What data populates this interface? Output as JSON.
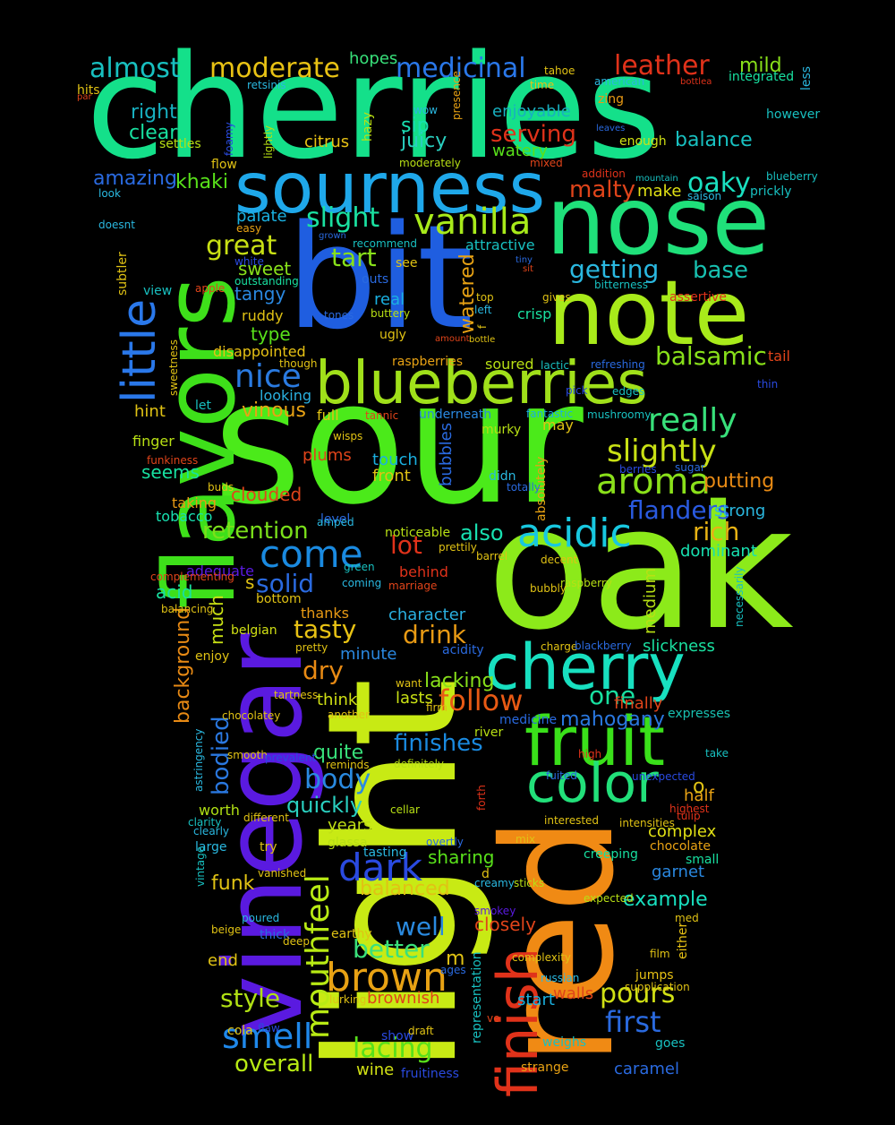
{
  "words": [
    {
      "text": "cherries",
      "color": "#14e08a"
    },
    {
      "text": "sour",
      "color": "#4bea1a"
    },
    {
      "text": "light",
      "color": "#c8ea14"
    },
    {
      "text": "oak",
      "color": "#8cea1a"
    },
    {
      "text": "bit",
      "color": "#1f5ee0"
    },
    {
      "text": "nose",
      "color": "#1fe07a"
    },
    {
      "text": "note",
      "color": "#a8ea1a"
    },
    {
      "text": "red",
      "color": "#f08a14"
    },
    {
      "text": "vinegar",
      "color": "#5a1ae0"
    },
    {
      "text": "flavors",
      "color": "#3ee01a"
    },
    {
      "text": "sourness",
      "color": "#1fa8ea"
    },
    {
      "text": "blueberries",
      "color": "#a0e01a"
    },
    {
      "text": "cherry",
      "color": "#18e0c0"
    },
    {
      "text": "fruit",
      "color": "#3ae01a"
    },
    {
      "text": "color",
      "color": "#22e07a"
    },
    {
      "text": "finish",
      "color": "#e0321a"
    },
    {
      "text": "little",
      "color": "#2a78ea"
    },
    {
      "text": "brown",
      "color": "#e8a214"
    },
    {
      "text": "smell",
      "color": "#1f88ea"
    },
    {
      "text": "mouthfeel",
      "color": "#b8ea14"
    },
    {
      "text": "acidic",
      "color": "#18c8e0"
    },
    {
      "text": "aroma",
      "color": "#8ae01a"
    },
    {
      "text": "vanilla",
      "color": "#a8ea1a"
    },
    {
      "text": "dark",
      "color": "#2a4ae0"
    },
    {
      "text": "come",
      "color": "#1a8ae0"
    },
    {
      "text": "really",
      "color": "#38e07a"
    },
    {
      "text": "slightly",
      "color": "#c8e014"
    },
    {
      "text": "nice",
      "color": "#2a7ae0"
    },
    {
      "text": "first",
      "color": "#2a6ae0"
    },
    {
      "text": "pours",
      "color": "#d0e014"
    },
    {
      "text": "lacing",
      "color": "#58e01a"
    },
    {
      "text": "better",
      "color": "#3ae07a"
    },
    {
      "text": "follow",
      "color": "#e85a14"
    },
    {
      "text": "body",
      "color": "#2a8ae0"
    },
    {
      "text": "style",
      "color": "#b0e014"
    },
    {
      "text": "overall",
      "color": "#b8ea14"
    },
    {
      "text": "medicinal",
      "color": "#2a78ea"
    },
    {
      "text": "moderate",
      "color": "#e8c214"
    },
    {
      "text": "almost",
      "color": "#18c0c0"
    },
    {
      "text": "leather",
      "color": "#e0321a"
    },
    {
      "text": "slight",
      "color": "#1ae0a0"
    },
    {
      "text": "great",
      "color": "#c8e014"
    },
    {
      "text": "oaky",
      "color": "#1ae0c0"
    },
    {
      "text": "getting",
      "color": "#2ab8e0"
    },
    {
      "text": "balsamic",
      "color": "#88e01a"
    },
    {
      "text": "flanders",
      "color": "#2a5ae0"
    },
    {
      "text": "retention",
      "color": "#7ae01a"
    },
    {
      "text": "solid",
      "color": "#2a6ae0"
    },
    {
      "text": "tasty",
      "color": "#e8c214"
    },
    {
      "text": "drink",
      "color": "#e89a14"
    },
    {
      "text": "dry",
      "color": "#e88a14"
    },
    {
      "text": "finishes",
      "color": "#1a8ae0"
    },
    {
      "text": "quickly",
      "color": "#2ad0c0"
    },
    {
      "text": "balanced",
      "color": "#e0c214"
    },
    {
      "text": "well",
      "color": "#2a8ae0"
    },
    {
      "text": "mahogany",
      "color": "#2a78e0"
    },
    {
      "text": "one",
      "color": "#18e0a0"
    },
    {
      "text": "rich",
      "color": "#e8b214"
    },
    {
      "text": "lot",
      "color": "#e0321a"
    },
    {
      "text": "also",
      "color": "#18e0b0"
    },
    {
      "text": "tart",
      "color": "#88e01a"
    },
    {
      "text": "malty",
      "color": "#e0441a"
    },
    {
      "text": "base",
      "color": "#18c0b0"
    },
    {
      "text": "serving",
      "color": "#e0321a"
    },
    {
      "text": "juicy",
      "color": "#2ad0c0"
    },
    {
      "text": "sip",
      "color": "#18e0b0"
    },
    {
      "text": "balance",
      "color": "#18c0c0"
    },
    {
      "text": "right",
      "color": "#18b0c0"
    },
    {
      "text": "clear",
      "color": "#18e0a0"
    },
    {
      "text": "amazing",
      "color": "#2a6ae0"
    },
    {
      "text": "khaki",
      "color": "#58e01a"
    },
    {
      "text": "sweet",
      "color": "#88e01a"
    },
    {
      "text": "tangy",
      "color": "#2a88e0"
    },
    {
      "text": "type",
      "color": "#58e01a"
    },
    {
      "text": "vinous",
      "color": "#e8a214"
    },
    {
      "text": "hint",
      "color": "#e0c214"
    },
    {
      "text": "seems",
      "color": "#18e0a0"
    },
    {
      "text": "clouded",
      "color": "#e0441a"
    },
    {
      "text": "much",
      "color": "#c8e014"
    },
    {
      "text": "acid",
      "color": "#18e0a0"
    },
    {
      "text": "background",
      "color": "#e88a14"
    },
    {
      "text": "bodied",
      "color": "#2a78e0"
    },
    {
      "text": "worth",
      "color": "#b0e014"
    },
    {
      "text": "funk",
      "color": "#e0c214"
    },
    {
      "text": "end",
      "color": "#e0c214"
    },
    {
      "text": "mild",
      "color": "#88e01a"
    },
    {
      "text": "hopes",
      "color": "#38e07a"
    },
    {
      "text": "citrus",
      "color": "#e8c214"
    },
    {
      "text": "watery",
      "color": "#58e01a"
    },
    {
      "text": "enjoyable",
      "color": "#18b0c0"
    },
    {
      "text": "make",
      "color": "#e0e014"
    },
    {
      "text": "palate",
      "color": "#1ab0e0"
    },
    {
      "text": "watered",
      "color": "#e8a214"
    },
    {
      "text": "putting",
      "color": "#e88a14"
    },
    {
      "text": "strong",
      "color": "#2ab8e0"
    },
    {
      "text": "dominant",
      "color": "#18e0b0"
    },
    {
      "text": "medium",
      "color": "#b8e014"
    },
    {
      "text": "character",
      "color": "#2ab0e0"
    },
    {
      "text": "minute",
      "color": "#2a88e0"
    },
    {
      "text": "think",
      "color": "#d0e014"
    },
    {
      "text": "lasts",
      "color": "#c8e014"
    },
    {
      "text": "lacking",
      "color": "#88e01a"
    },
    {
      "text": "quite",
      "color": "#38e07a"
    },
    {
      "text": "years",
      "color": "#c0e014"
    },
    {
      "text": "sharing",
      "color": "#58e01a"
    },
    {
      "text": "closely",
      "color": "#e0441a"
    },
    {
      "text": "example",
      "color": "#18e0c0"
    },
    {
      "text": "complex",
      "color": "#e0e014"
    },
    {
      "text": "half",
      "color": "#e8a214"
    },
    {
      "text": "garnet",
      "color": "#2a88e0"
    },
    {
      "text": "expresses",
      "color": "#18c0b0"
    },
    {
      "text": "slickness",
      "color": "#1ae0a0"
    },
    {
      "text": "finally",
      "color": "#e0441a"
    },
    {
      "text": "brownish",
      "color": "#e0441a"
    },
    {
      "text": "caramel",
      "color": "#2a6ae0"
    },
    {
      "text": "wine",
      "color": "#d0e014"
    },
    {
      "text": "start",
      "color": "#1ab0e0"
    },
    {
      "text": "walls",
      "color": "#e0441a"
    },
    {
      "text": "plums",
      "color": "#e0441a"
    },
    {
      "text": "touch",
      "color": "#1ab0e0"
    },
    {
      "text": "front",
      "color": "#e0c214"
    },
    {
      "text": "tobacco",
      "color": "#18e0b0"
    },
    {
      "text": "taking",
      "color": "#e89a14"
    },
    {
      "text": "finger",
      "color": "#b8e014"
    },
    {
      "text": "full",
      "color": "#e0c214"
    },
    {
      "text": "let",
      "color": "#18c0c0"
    },
    {
      "text": "looking",
      "color": "#2ab0e0"
    },
    {
      "text": "disappointed",
      "color": "#e8c214"
    },
    {
      "text": "ruddy",
      "color": "#e0c214"
    },
    {
      "text": "real",
      "color": "#1ab0e0"
    },
    {
      "text": "crisp",
      "color": "#1ae0a0"
    },
    {
      "text": "soured",
      "color": "#b8e014"
    },
    {
      "text": "raspberries",
      "color": "#e8a214"
    },
    {
      "text": "tail",
      "color": "#e0441a"
    },
    {
      "text": "may",
      "color": "#e0c214"
    },
    {
      "text": "fantastic",
      "color": "#1ab0e0"
    },
    {
      "text": "underneath",
      "color": "#2a88e0"
    },
    {
      "text": "bubbles",
      "color": "#2a6ae0"
    },
    {
      "text": "enjoy",
      "color": "#e0c214"
    },
    {
      "text": "belgian",
      "color": "#d0e014"
    },
    {
      "text": "thanks",
      "color": "#e89a14"
    },
    {
      "text": "bottom",
      "color": "#e0c214"
    },
    {
      "text": "adequate",
      "color": "#5a1ae0"
    },
    {
      "text": "behind",
      "color": "#e0321a"
    },
    {
      "text": "noticeable",
      "color": "#b8e014"
    },
    {
      "text": "level",
      "color": "#2a6ae0"
    },
    {
      "text": "didn",
      "color": "#2ab8e0"
    },
    {
      "text": "murky",
      "color": "#b8e014"
    },
    {
      "text": "absolutely",
      "color": "#e8a214"
    },
    {
      "text": "medicine",
      "color": "#2a6ae0"
    },
    {
      "text": "river",
      "color": "#b8e014"
    },
    {
      "text": "creeping",
      "color": "#18e0a0"
    },
    {
      "text": "chocolate",
      "color": "#e8a214"
    },
    {
      "text": "small",
      "color": "#18e0a0"
    },
    {
      "text": "tasting",
      "color": "#2ab8e0"
    },
    {
      "text": "glassa",
      "color": "#b8e014"
    },
    {
      "text": "try",
      "color": "#e0c214"
    },
    {
      "text": "large",
      "color": "#2ab8e0"
    },
    {
      "text": "poured",
      "color": "#2ab8e0"
    },
    {
      "text": "thick",
      "color": "#2a6ae0"
    },
    {
      "text": "earthy",
      "color": "#e0c214"
    },
    {
      "text": "show",
      "color": "#2a4ae0"
    },
    {
      "text": "draft",
      "color": "#e0c214"
    },
    {
      "text": "goes",
      "color": "#18c0c0"
    },
    {
      "text": "weighs",
      "color": "#18c0c0"
    },
    {
      "text": "strange",
      "color": "#e8a214"
    },
    {
      "text": "fruitiness",
      "color": "#2a4ae0"
    },
    {
      "text": "representation",
      "color": "#18c0c0"
    },
    {
      "text": "either",
      "color": "#e8c214"
    },
    {
      "text": "jumps",
      "color": "#e8c214"
    },
    {
      "text": "russian",
      "color": "#2ab8e0"
    },
    {
      "text": "smokey",
      "color": "#5a1ae0"
    },
    {
      "text": "creamy",
      "color": "#2ab8e0"
    },
    {
      "text": "sticks",
      "color": "#b8e014"
    },
    {
      "text": "expected",
      "color": "#b8e014"
    },
    {
      "text": "cola",
      "color": "#e0c214"
    },
    {
      "text": "chocolatey",
      "color": "#e0c214"
    },
    {
      "text": "definitely",
      "color": "#b8e014"
    },
    {
      "text": "cellar",
      "color": "#b8e014"
    },
    {
      "text": "forth",
      "color": "#e0321a"
    },
    {
      "text": "smooth",
      "color": "#e0c214"
    },
    {
      "text": "clarity",
      "color": "#18c0c0"
    },
    {
      "text": "clearly",
      "color": "#2ab8e0"
    },
    {
      "text": "tahoe",
      "color": "#e0c214"
    },
    {
      "text": "time",
      "color": "#e8c214"
    },
    {
      "text": "american",
      "color": "#2ab8e0"
    },
    {
      "text": "integrated",
      "color": "#18e0a0"
    },
    {
      "text": "bottlea",
      "color": "#e0321a"
    },
    {
      "text": "less",
      "color": "#2ab8e0"
    },
    {
      "text": "hits",
      "color": "#e0c214"
    },
    {
      "text": "par",
      "color": "#e0441a"
    },
    {
      "text": "retsinis",
      "color": "#2ab8e0"
    },
    {
      "text": "zing",
      "color": "#e89a14"
    },
    {
      "text": "however",
      "color": "#18c0c0"
    },
    {
      "text": "leaves",
      "color": "#2a6ae0"
    },
    {
      "text": "enough",
      "color": "#d0e014"
    },
    {
      "text": "wow",
      "color": "#2ab8e0"
    },
    {
      "text": "presence",
      "color": "#e8a214"
    },
    {
      "text": "hazy",
      "color": "#b8e014"
    },
    {
      "text": "foamy",
      "color": "#2a4ae0"
    },
    {
      "text": "lightly",
      "color": "#b8e014"
    },
    {
      "text": "settles",
      "color": "#b8e014"
    },
    {
      "text": "flow",
      "color": "#e0c214"
    },
    {
      "text": "look",
      "color": "#2ab8e0"
    },
    {
      "text": "doesnt",
      "color": "#2ab8e0"
    },
    {
      "text": "easy",
      "color": "#e8a214"
    },
    {
      "text": "grown",
      "color": "#2a6ae0"
    },
    {
      "text": "recommend",
      "color": "#18c0c0"
    },
    {
      "text": "moderately",
      "color": "#b8e014"
    },
    {
      "text": "mixed",
      "color": "#e0441a"
    },
    {
      "text": "addition",
      "color": "#e0321a"
    },
    {
      "text": "mountain",
      "color": "#18c0c0"
    },
    {
      "text": "saison",
      "color": "#2ab8e0"
    },
    {
      "text": "blueberry",
      "color": "#18c0c0"
    },
    {
      "text": "prickly",
      "color": "#18c0c0"
    },
    {
      "text": "attractive",
      "color": "#18c0c0"
    },
    {
      "text": "tiny",
      "color": "#2a6ae0"
    },
    {
      "text": "sit",
      "color": "#e0441a"
    },
    {
      "text": "see",
      "color": "#e0c214"
    },
    {
      "text": "outs",
      "color": "#2a6ae0"
    },
    {
      "text": "white",
      "color": "#2a4ae0"
    },
    {
      "text": "outstanding",
      "color": "#18e0a0"
    },
    {
      "text": "subtler",
      "color": "#e0c214"
    },
    {
      "text": "view",
      "color": "#18c0c0"
    },
    {
      "text": "apple",
      "color": "#e0441a"
    },
    {
      "text": "tones",
      "color": "#2a6ae0"
    },
    {
      "text": "buttery",
      "color": "#b8e014"
    },
    {
      "text": "gives",
      "color": "#e0c214"
    },
    {
      "text": "bitterness",
      "color": "#18c0c0"
    },
    {
      "text": "assertive",
      "color": "#e0321a"
    },
    {
      "text": "top",
      "color": "#e0c214"
    },
    {
      "text": "left",
      "color": "#2ab8e0"
    },
    {
      "text": "f",
      "color": "#e0c214"
    },
    {
      "text": "ugly",
      "color": "#e0c214"
    },
    {
      "text": "amount",
      "color": "#e0441a"
    },
    {
      "text": "bottle",
      "color": "#e0c214"
    },
    {
      "text": "though",
      "color": "#e0c214"
    },
    {
      "text": "lactic",
      "color": "#18c0c0"
    },
    {
      "text": "refreshing",
      "color": "#2a6ae0"
    },
    {
      "text": "thin",
      "color": "#2a4ae0"
    },
    {
      "text": "sweetness",
      "color": "#e0c214"
    },
    {
      "text": "pick",
      "color": "#2a4ae0"
    },
    {
      "text": "edges",
      "color": "#18c0c0"
    },
    {
      "text": "mushroomy",
      "color": "#18c0c0"
    },
    {
      "text": "tannic",
      "color": "#e0441a"
    },
    {
      "text": "wisps",
      "color": "#e0c214"
    },
    {
      "text": "funkiness",
      "color": "#e0441a"
    },
    {
      "text": "buds",
      "color": "#e0c214"
    },
    {
      "text": "berries",
      "color": "#2a4ae0"
    },
    {
      "text": "sugar",
      "color": "#2a6ae0"
    },
    {
      "text": "totally",
      "color": "#2a6ae0"
    },
    {
      "text": "amped",
      "color": "#2ab8e0"
    },
    {
      "text": "prettily",
      "color": "#e0c214"
    },
    {
      "text": "barrel",
      "color": "#e0c214"
    },
    {
      "text": "decent",
      "color": "#e0c214"
    },
    {
      "text": "complementing",
      "color": "#e0441a"
    },
    {
      "text": "coming",
      "color": "#2ab8e0"
    },
    {
      "text": "green",
      "color": "#18c0c0"
    },
    {
      "text": "marriage",
      "color": "#e0441a"
    },
    {
      "text": "bubbly",
      "color": "#e0c214"
    },
    {
      "text": "raspberry",
      "color": "#b8e014"
    },
    {
      "text": "necessarily",
      "color": "#18c0c0"
    },
    {
      "text": "balancing",
      "color": "#e0c214"
    },
    {
      "text": "s",
      "color": "#e0c214"
    },
    {
      "text": "pretty",
      "color": "#e0c214"
    },
    {
      "text": "acidity",
      "color": "#2a6ae0"
    },
    {
      "text": "charge",
      "color": "#e0c214"
    },
    {
      "text": "blackberry",
      "color": "#2a6ae0"
    },
    {
      "text": "tartness",
      "color": "#e0c214"
    },
    {
      "text": "want",
      "color": "#e0c214"
    },
    {
      "text": "firm",
      "color": "#e0c214"
    },
    {
      "text": "another",
      "color": "#e0c214"
    },
    {
      "text": "astringency",
      "color": "#2ab8e0"
    },
    {
      "text": "prevalent",
      "color": "#2a4ae0"
    },
    {
      "text": "reminds",
      "color": "#e0c214"
    },
    {
      "text": "high",
      "color": "#e0321a"
    },
    {
      "text": "take",
      "color": "#18c0c0"
    },
    {
      "text": "unexpected",
      "color": "#2a4ae0"
    },
    {
      "text": "fuited",
      "color": "#2a6ae0"
    },
    {
      "text": "highest",
      "color": "#e0321a"
    },
    {
      "text": "tulip",
      "color": "#e0321a"
    },
    {
      "text": "intensities",
      "color": "#e0c214"
    },
    {
      "text": "interested",
      "color": "#e0c214"
    },
    {
      "text": "different",
      "color": "#e0c214"
    },
    {
      "text": "vintage",
      "color": "#18c0c0"
    },
    {
      "text": "overtly",
      "color": "#2a6ae0"
    },
    {
      "text": "mix",
      "color": "#e0c214"
    },
    {
      "text": "vanished",
      "color": "#e0c214"
    },
    {
      "text": "beige",
      "color": "#e0c214"
    },
    {
      "text": "deep",
      "color": "#e0c214"
    },
    {
      "text": "d",
      "color": "#e0c214"
    },
    {
      "text": "med",
      "color": "#e0c214"
    },
    {
      "text": "film",
      "color": "#e0c214"
    },
    {
      "text": "complexity",
      "color": "#e0c214"
    },
    {
      "text": "ages",
      "color": "#2a6ae0"
    },
    {
      "text": "ve",
      "color": "#e0441a"
    },
    {
      "text": "lurking",
      "color": "#e0c214"
    },
    {
      "text": "flaw",
      "color": "#2a4ae0"
    },
    {
      "text": "supplication",
      "color": "#e0c214"
    },
    {
      "text": "m",
      "color": "#e0c214"
    },
    {
      "text": "o",
      "color": "#e0c214"
    }
  ]
}
